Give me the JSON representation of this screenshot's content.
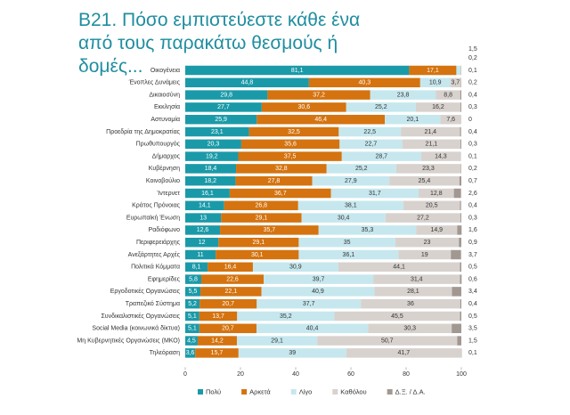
{
  "chart_data": {
    "type": "stacked-barh",
    "title": "Β21. Πόσο εμπιστεύεστε κάθε ένα από τους παρακάτω θεσμούς ή δομές...",
    "categories": [
      "Οικογένεια",
      "Ένοπλες Δυνάμεις",
      "Δικαιοσύνη",
      "Εκκλησία",
      "Αστυνομία",
      "Προεδρία της Δημοκρατίας",
      "Πρωθυπουργός",
      "Δήμαρχος",
      "Κυβέρνηση",
      "Κοινοβούλιο",
      "Ίντερνετ",
      "Κράτος Πρόνοιας",
      "Ευρωπαϊκή Ένωση",
      "Ραδιόφωνο",
      "Περιφερειάρχης",
      "Ανεξάρτητες Αρχές",
      "Πολιτικά Κόμματα",
      "Εφημερίδες",
      "Εργοδοτικές Οργανώσεις",
      "Τραπεζικό Σύστημα",
      "Συνδικαλιστικές Οργανώσεις",
      "Social Media (κοινωνικά δίκτυα)",
      "Μη Κυβερνητικές Οργανώσεις (ΜΚΟ)",
      "Τηλεόραση"
    ],
    "series": [
      {
        "name": "Πολύ",
        "color": "#1a9aa8",
        "values": [
          81.1,
          44.8,
          29.8,
          27.7,
          25.9,
          23.1,
          20.3,
          19.2,
          18.4,
          18.2,
          16.1,
          14.1,
          13,
          12.6,
          12,
          11,
          8.1,
          5.8,
          5.5,
          5.2,
          5.1,
          5.1,
          4.5,
          3.6
        ],
        "value_labels": [
          "81,1",
          "44,8",
          "29,8",
          "27,7",
          "25,9",
          "23,1",
          "20,3",
          "19,2",
          "18,4",
          "18,2",
          "16,1",
          "14,1",
          "13",
          "12,6",
          "12",
          "11",
          "8,1",
          "5,8",
          "5,5",
          "5,2",
          "5,1",
          "5,1",
          "4,5",
          "3,6"
        ]
      },
      {
        "name": "Αρκετά",
        "color": "#d4730f",
        "values": [
          17.1,
          40.3,
          37.2,
          30.6,
          46.4,
          32.5,
          35.6,
          37.5,
          32.8,
          27.8,
          36.7,
          26.8,
          29.1,
          35.7,
          29.1,
          30.1,
          16.4,
          22.6,
          22.1,
          20.7,
          13.7,
          20.7,
          14.2,
          15.7
        ],
        "value_labels": [
          "17,1",
          "40,3",
          "37,2",
          "30,6",
          "46,4",
          "32,5",
          "35,6",
          "37,5",
          "32,8",
          "27,8",
          "36,7",
          "26,8",
          "29,1",
          "35,7",
          "29,1",
          "30,1",
          "16,4",
          "22,6",
          "22,1",
          "20,7",
          "13,7",
          "20,7",
          "14,2",
          "15,7"
        ]
      },
      {
        "name": "Λίγο",
        "color": "#c6e7ee",
        "values": [
          1.5,
          10.9,
          23.8,
          25.2,
          20.1,
          22.5,
          22.7,
          28.7,
          25.2,
          27.9,
          31.7,
          38.1,
          30.4,
          35.3,
          35,
          36.1,
          30.9,
          39.7,
          40.9,
          37.7,
          35.2,
          40.4,
          29.1,
          39
        ],
        "value_labels": [
          "1,5",
          "10,9",
          "23,8",
          "25,2",
          "20,1",
          "22,5",
          "22,7",
          "28,7",
          "25,2",
          "27,9",
          "31,7",
          "38,1",
          "30,4",
          "35,3",
          "35",
          "36,1",
          "30,9",
          "39,7",
          "40,9",
          "37,7",
          "35,2",
          "40,4",
          "29,1",
          "39"
        ]
      },
      {
        "name": "Καθόλου",
        "color": "#d8d2ce",
        "values": [
          0.2,
          3.7,
          8.8,
          16.2,
          7.6,
          21.4,
          21.1,
          14.3,
          23.3,
          25.4,
          12.8,
          20.5,
          27.2,
          14.9,
          23,
          19,
          44.1,
          31.4,
          28.1,
          36,
          45.5,
          30.3,
          50.7,
          41.7
        ],
        "value_labels": [
          "0,2",
          "3,7",
          "8,8",
          "16,2",
          "7,6",
          "21,4",
          "21,1",
          "14,3",
          "23,3",
          "25,4",
          "12,8",
          "20,5",
          "27,2",
          "14,9",
          "23",
          "19",
          "44,1",
          "31,4",
          "28,1",
          "36",
          "45,5",
          "30,3",
          "50,7",
          "41,7"
        ]
      },
      {
        "name": "Δ.Ξ. / Δ.Α.",
        "color": "#a29892",
        "values": [
          0.1,
          0.2,
          0.4,
          0.3,
          0,
          0.4,
          0.3,
          0.1,
          0.2,
          0.7,
          2.6,
          0.4,
          0.3,
          1.6,
          0.9,
          3.7,
          0.5,
          0.6,
          3.4,
          0.4,
          0.5,
          3.5,
          1.5,
          0.1
        ],
        "value_labels": [
          "0,1",
          "0,2",
          "0,4",
          "0,3",
          "0",
          "0,4",
          "0,3",
          "0,1",
          "0,2",
          "0,7",
          "2,6",
          "0,4",
          "0,3",
          "1,6",
          "0,9",
          "3,7",
          "0,5",
          "0,6",
          "3,4",
          "0,4",
          "0,5",
          "3,5",
          "1,5",
          "0,1"
        ]
      }
    ],
    "xlim": [
      0,
      100
    ],
    "xticks": [
      0,
      20,
      40,
      60,
      80,
      100
    ]
  }
}
